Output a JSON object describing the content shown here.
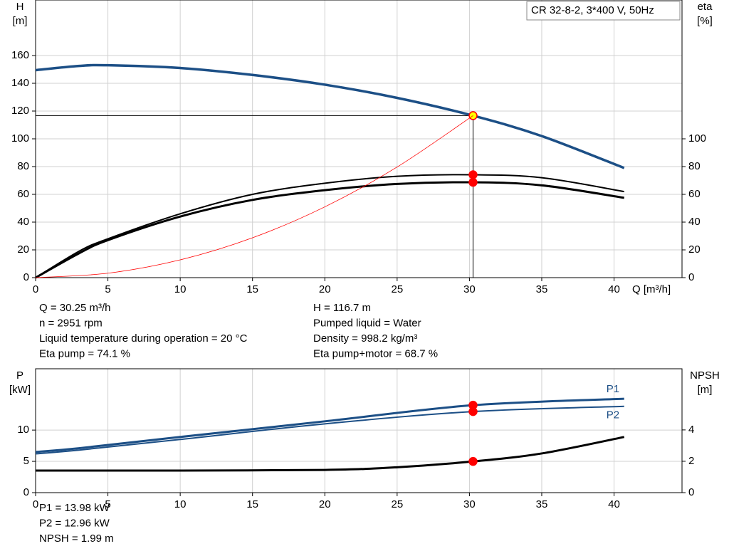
{
  "chart_data": [
    {
      "type": "line",
      "title": "CR 32-8-2, 3*400 V, 50Hz",
      "ylabel": [
        "H",
        "[m]"
      ],
      "y2label": [
        "eta",
        "[%]"
      ],
      "xlabel": "Q [m³/h]",
      "xlim": [
        0,
        44.7
      ],
      "xticks": [
        0,
        5,
        10,
        15,
        20,
        25,
        30,
        35,
        40
      ],
      "ylim": [
        0,
        200
      ],
      "yticks": [
        0,
        20,
        40,
        60,
        80,
        100,
        120,
        140,
        160
      ],
      "y2lim": [
        0,
        200
      ],
      "y2ticks": [
        0,
        20,
        40,
        60,
        80,
        100
      ],
      "grid": true,
      "crosshair": true,
      "operating_point": {
        "x": 30.25,
        "y": 116.7
      },
      "series": [
        {
          "color": "#1c4f86",
          "width": 3.5,
          "marker_color": "#ffff00",
          "x": [
            0,
            3,
            5,
            10,
            15,
            20,
            25,
            30.25,
            35,
            40.7
          ],
          "values": [
            149.5,
            152.5,
            153,
            151,
            146,
            139,
            129.5,
            116.7,
            102,
            79
          ]
        },
        {
          "color": "#000000",
          "width": 2,
          "marker_color": "#ff0000",
          "axis": "y2",
          "x": [
            0,
            3,
            5,
            10,
            15,
            20,
            25,
            30.25,
            35,
            40.7
          ],
          "values": [
            0,
            19,
            28,
            46,
            60,
            68,
            73,
            74.1,
            72,
            62
          ]
        },
        {
          "color": "#000000",
          "width": 3,
          "marker_color": "#ff0000",
          "axis": "y2",
          "x": [
            0,
            3,
            5,
            10,
            15,
            20,
            25,
            30.25,
            35,
            40.7
          ],
          "values": [
            0,
            17.5,
            27,
            44,
            56,
            63,
            67.5,
            68.7,
            66.5,
            57.5
          ]
        },
        {
          "color": "#ff0000",
          "width": 0.8,
          "x": [
            0,
            5,
            10,
            15,
            20,
            25,
            30.25
          ],
          "values": [
            0,
            3.2,
            12.8,
            28.7,
            51,
            79.7,
            116.7
          ]
        }
      ],
      "annotations": [
        [
          "Q = 30.25 m³/h",
          "n = 2951 rpm",
          "Liquid temperature during operation = 20 °C",
          "Eta pump = 74.1 %"
        ],
        [
          "H = 116.7 m",
          "Pumped liquid = Water",
          "Density = 998.2 kg/m³",
          "Eta pump+motor = 68.7 %"
        ]
      ]
    },
    {
      "type": "line",
      "ylabel": [
        "P",
        "[kW]"
      ],
      "y2label": [
        "NPSH",
        "[m]"
      ],
      "xlim": [
        0,
        44.7
      ],
      "xticks": [
        0,
        5,
        10,
        15,
        20,
        25,
        30,
        35,
        40
      ],
      "ylim": [
        0,
        19.8
      ],
      "yticks": [
        0,
        5,
        10
      ],
      "y2lim": [
        0,
        7.9
      ],
      "y2ticks": [
        0,
        2,
        4
      ],
      "grid": true,
      "operating_point": {
        "x": 30.25
      },
      "series": [
        {
          "name": "P1",
          "color": "#1c4f86",
          "width": 3,
          "marker_color": "#ff0000",
          "x": [
            0,
            3,
            10,
            20,
            30.25,
            40.7
          ],
          "values": [
            6.5,
            7.1,
            8.9,
            11.4,
            13.98,
            15.0
          ]
        },
        {
          "name": "P2",
          "color": "#1c4f86",
          "width": 2,
          "marker_color": "#ff0000",
          "x": [
            0,
            3,
            10,
            20,
            30.25,
            40.7
          ],
          "values": [
            6.2,
            6.8,
            8.5,
            11,
            12.96,
            13.8
          ]
        },
        {
          "color": "#000000",
          "width": 3,
          "marker_color": "#ff0000",
          "axis": "y2",
          "x": [
            0,
            3,
            10,
            20,
            25,
            30.25,
            35,
            40.7
          ],
          "values": [
            1.41,
            1.41,
            1.41,
            1.45,
            1.62,
            1.99,
            2.5,
            3.55
          ]
        }
      ],
      "annotations": [
        [
          "P1 = 13.98 kW",
          "P2 = 12.96 kW",
          "NPSH = 1.99 m"
        ]
      ]
    }
  ]
}
